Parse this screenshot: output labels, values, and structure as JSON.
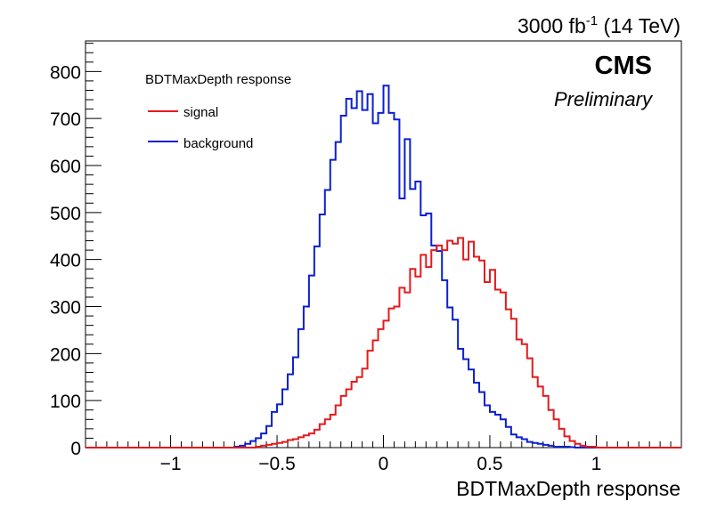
{
  "header": {
    "lumi_value": "3000 fb",
    "lumi_exponent": "-1",
    "lumi_energy": " (14 TeV)",
    "experiment": "CMS",
    "status": "Preliminary"
  },
  "legend": {
    "title": "BDTMaxDepth response",
    "entries": [
      {
        "label": "signal",
        "color": "#e41a1c"
      },
      {
        "label": "background",
        "color": "#0a1fd1"
      }
    ]
  },
  "chart_data": {
    "type": "histogram",
    "title": "",
    "xlabel": "BDTMaxDepth response",
    "ylabel": "",
    "xlim": [
      -1.4,
      1.4
    ],
    "ylim": [
      0,
      865
    ],
    "x_ticks": [
      -1,
      -0.5,
      0,
      0.5,
      1
    ],
    "x_tick_labels": [
      "−1",
      "−0.5",
      "0",
      "0.5",
      "1"
    ],
    "y_ticks": [
      0,
      100,
      200,
      300,
      400,
      500,
      600,
      700,
      800
    ],
    "y_tick_labels": [
      "0",
      "100",
      "200",
      "300",
      "400",
      "500",
      "600",
      "700",
      "800"
    ],
    "grid": false,
    "legend_position": "top-left",
    "bin_low": -0.7,
    "bin_width": 0.025,
    "series": [
      {
        "name": "background",
        "color": "#0a1fd1",
        "values": [
          2,
          4,
          8,
          14,
          20,
          30,
          46,
          76,
          92,
          124,
          156,
          192,
          252,
          300,
          366,
          428,
          496,
          548,
          612,
          650,
          706,
          742,
          722,
          758,
          718,
          752,
          690,
          712,
          770,
          712,
          698,
          530,
          656,
          550,
          566,
          494,
          498,
          430,
          418,
          356,
          298,
          272,
          210,
          188,
          166,
          138,
          118,
          90,
          76,
          70,
          60,
          44,
          28,
          22,
          18,
          12,
          10,
          8,
          6,
          4,
          2,
          2,
          2,
          1,
          0,
          0
        ]
      },
      {
        "name": "signal",
        "color": "#e41a1c",
        "values": [
          0,
          0,
          0,
          0,
          2,
          4,
          6,
          8,
          10,
          12,
          16,
          18,
          22,
          26,
          30,
          38,
          50,
          60,
          70,
          90,
          110,
          124,
          140,
          150,
          168,
          206,
          228,
          252,
          270,
          296,
          300,
          340,
          330,
          380,
          364,
          410,
          384,
          420,
          430,
          420,
          440,
          434,
          446,
          400,
          438,
          406,
          398,
          352,
          378,
          336,
          330,
          294,
          274,
          230,
          220,
          190,
          150,
          130,
          110,
          80,
          60,
          40,
          24,
          14,
          8,
          4,
          2,
          2,
          0,
          0,
          0
        ]
      }
    ]
  }
}
